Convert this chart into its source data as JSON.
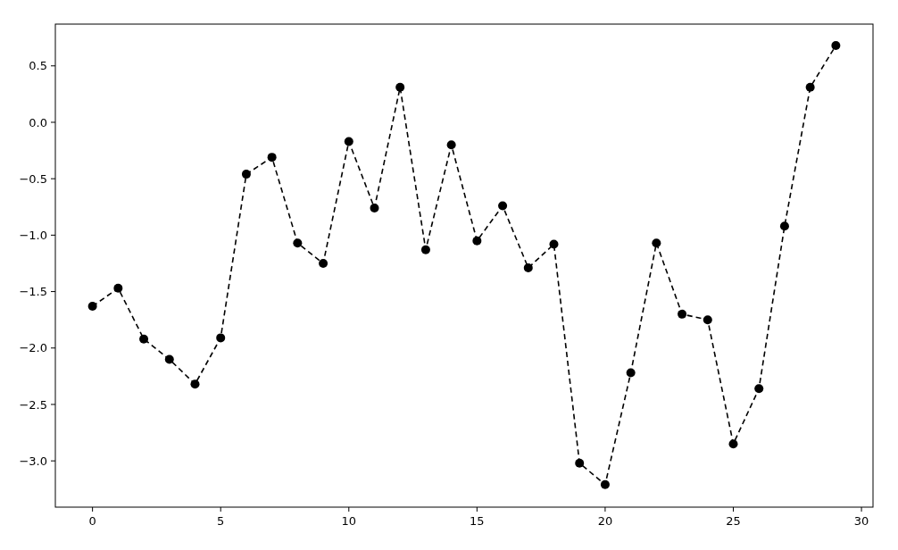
{
  "chart_data": {
    "type": "line",
    "x": [
      0,
      1,
      2,
      3,
      4,
      5,
      6,
      7,
      8,
      9,
      10,
      11,
      12,
      13,
      14,
      15,
      16,
      17,
      18,
      19,
      20,
      21,
      22,
      23,
      24,
      25,
      26,
      27,
      28,
      29
    ],
    "series": [
      {
        "color": "#000000",
        "values": [
          -1.63,
          -1.47,
          -1.92,
          -2.1,
          -2.32,
          -1.91,
          -0.46,
          -0.31,
          -1.07,
          -1.25,
          -0.17,
          -0.76,
          0.31,
          -1.13,
          -0.2,
          -1.05,
          -0.74,
          -1.29,
          -1.08,
          -3.02,
          -3.21,
          -2.22,
          -1.07,
          -1.7,
          -1.75,
          -2.85,
          -2.36,
          -0.92,
          0.31,
          0.68
        ]
      }
    ],
    "xlim": [
      -1.45,
      30.45
    ],
    "ylim": [
      -3.41,
      0.87
    ],
    "xticks": [
      0,
      5,
      10,
      15,
      20,
      25,
      30
    ],
    "yticks": [
      {
        "value": 0.5,
        "label": "0.5"
      },
      {
        "value": 0,
        "label": "0.0"
      },
      {
        "value": -0.5,
        "label": "−0.5"
      },
      {
        "value": -1,
        "label": "−1.0"
      },
      {
        "value": -1.5,
        "label": "−1.5"
      },
      {
        "value": -2,
        "label": "−2.0"
      },
      {
        "value": -2.5,
        "label": "−2.5"
      },
      {
        "value": -3,
        "label": "−3.0"
      }
    ],
    "marker": "circle",
    "line_style": "dashed",
    "grid": false
  }
}
